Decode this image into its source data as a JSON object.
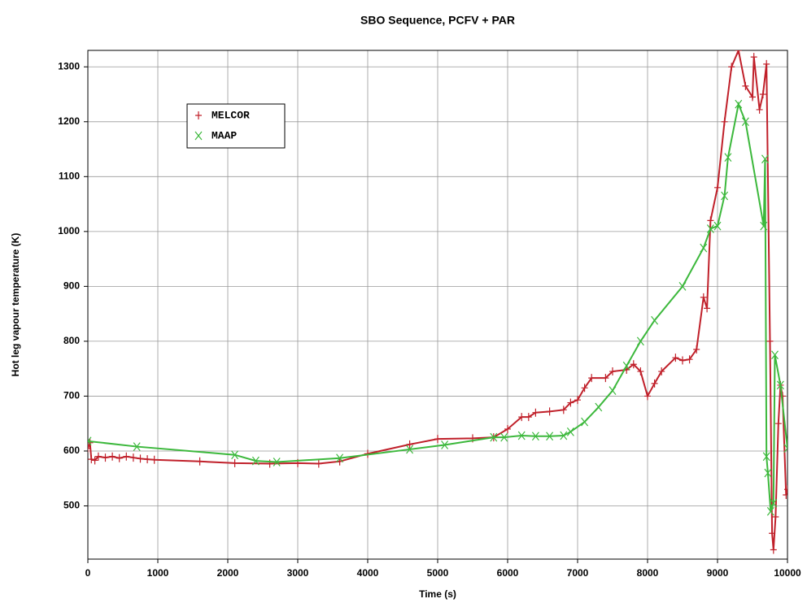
{
  "chart_data": {
    "type": "line",
    "title": "SBO Sequence, PCFV + PAR",
    "x_label": "Time (s)",
    "y_label": "Hot leg vapour temperature   (K)",
    "xlim": [
      0,
      10000
    ],
    "xticks": [
      0,
      1000,
      2000,
      3000,
      4000,
      5000,
      6000,
      7000,
      8000,
      9000,
      10000
    ],
    "ylim": [
      403,
      1330
    ],
    "yticks": [
      500,
      600,
      700,
      800,
      900,
      1000,
      1100,
      1200,
      1300
    ],
    "grid": true,
    "legend": "upper left",
    "series": [
      {
        "name": "MELCOR",
        "color": "#c0202a",
        "marker": "+",
        "x": [
          0,
          30,
          50,
          100,
          150,
          250,
          350,
          450,
          550,
          650,
          750,
          850,
          950,
          1600,
          2100,
          2600,
          3000,
          3300,
          3600,
          4000,
          4600,
          5000,
          5500,
          5800,
          6000,
          6200,
          6300,
          6400,
          6600,
          6800,
          6900,
          7000,
          7100,
          7200,
          7400,
          7500,
          7700,
          7800,
          7900,
          8000,
          8100,
          8200,
          8400,
          8500,
          8600,
          8700,
          8800,
          8850,
          8900,
          9000,
          9100,
          9200,
          9300,
          9400,
          9500,
          9520,
          9600,
          9650,
          9700,
          9750,
          9780,
          9800,
          9830,
          9870,
          9900,
          9930,
          9980,
          10000
        ],
        "values": [
          605,
          615,
          585,
          583,
          590,
          588,
          590,
          587,
          590,
          588,
          586,
          585,
          584,
          581,
          578,
          577,
          578,
          577,
          581,
          595,
          612,
          622,
          623,
          625,
          640,
          662,
          662,
          670,
          672,
          675,
          688,
          693,
          715,
          733,
          733,
          745,
          748,
          758,
          745,
          700,
          723,
          745,
          770,
          765,
          767,
          785,
          880,
          860,
          1020,
          1080,
          1200,
          1300,
          1330,
          1265,
          1245,
          1318,
          1222,
          1250,
          1305,
          800,
          450,
          420,
          480,
          650,
          720,
          700,
          520,
          530
        ]
      },
      {
        "name": "MAAP",
        "color": "#3cb83c",
        "marker": "x",
        "x": [
          0,
          700,
          2100,
          2400,
          2700,
          3600,
          4600,
          5100,
          5800,
          5950,
          6200,
          6400,
          6600,
          6800,
          6900,
          7100,
          7300,
          7500,
          7700,
          7900,
          8100,
          8500,
          8800,
          8900,
          9000,
          9100,
          9150,
          9300,
          9400,
          9660,
          9680,
          9700,
          9720,
          9760,
          9800,
          9820,
          9900,
          10000
        ],
        "values": [
          618,
          608,
          593,
          582,
          580,
          587,
          603,
          611,
          625,
          625,
          628,
          627,
          627,
          628,
          635,
          653,
          680,
          710,
          755,
          800,
          838,
          900,
          970,
          1005,
          1010,
          1065,
          1135,
          1232,
          1200,
          1010,
          1132,
          590,
          560,
          490,
          505,
          775,
          720,
          605
        ]
      }
    ]
  }
}
